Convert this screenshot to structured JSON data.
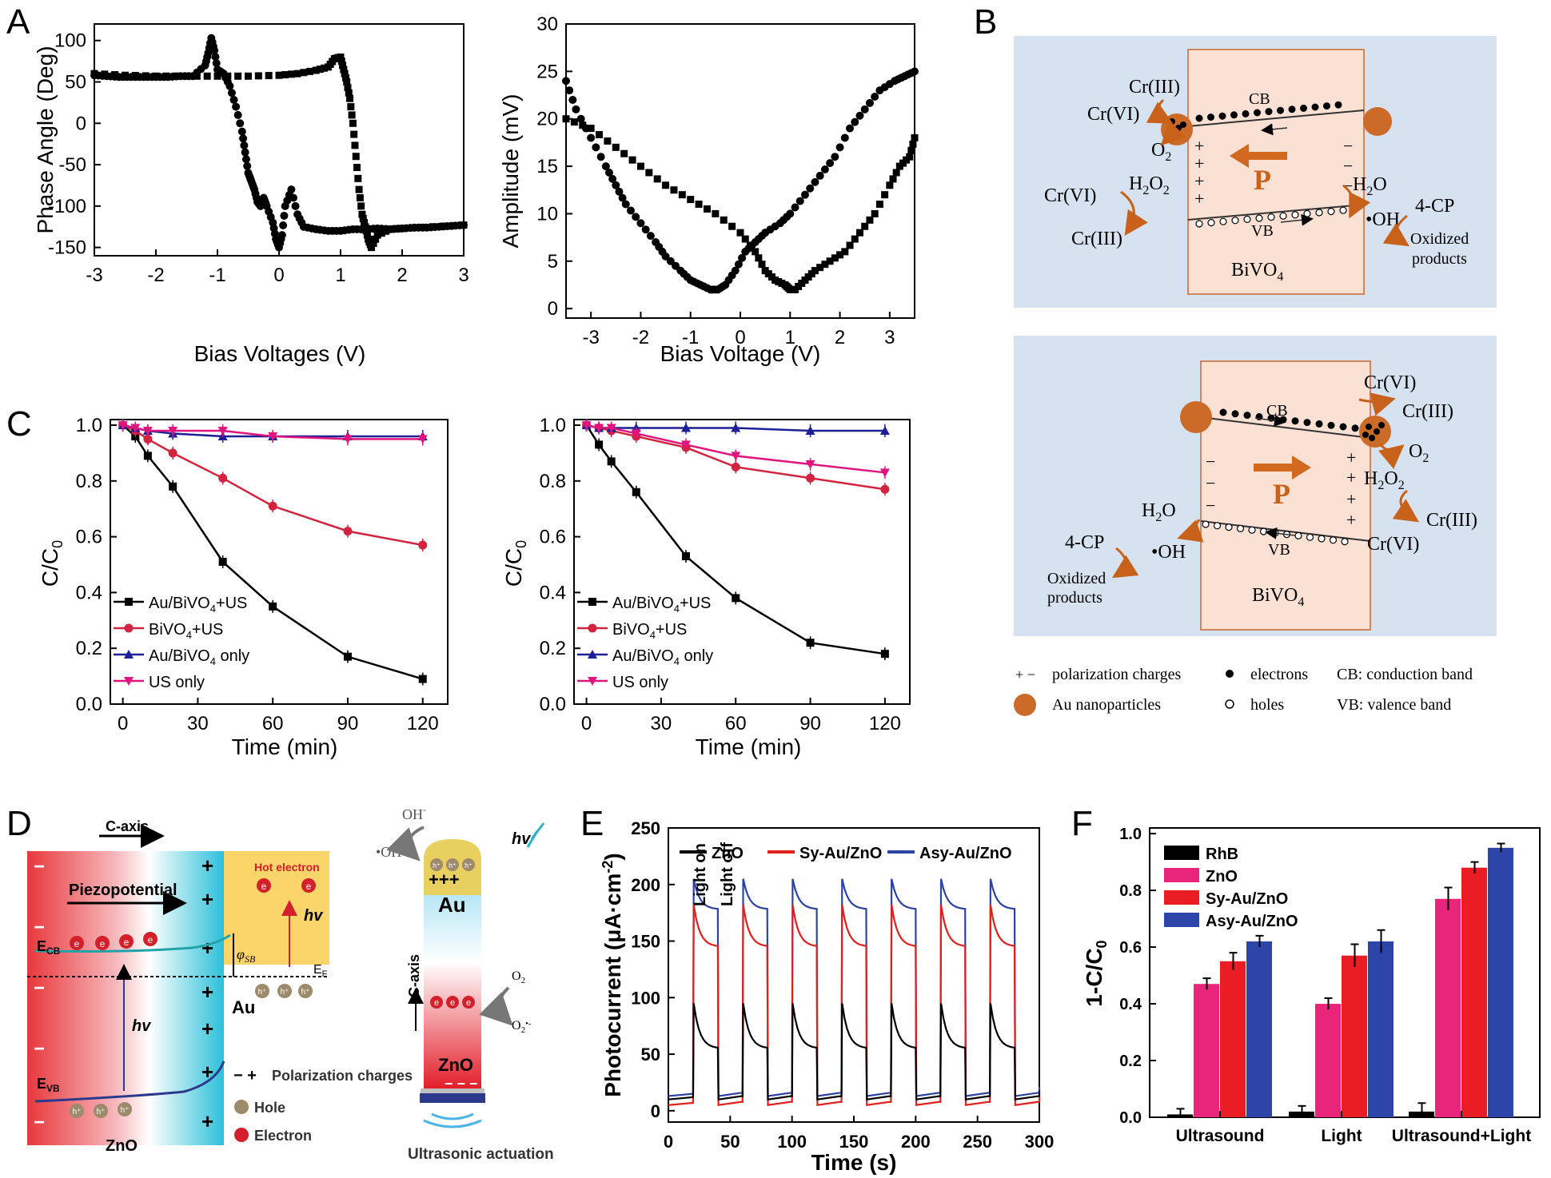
{
  "panels": {
    "A": {
      "label": "A",
      "phase": {
        "ylabel": "Phase Angle (Deg)",
        "xlabel": "Bias Voltages (V)",
        "xticks": [
          "-3",
          "-2",
          "-1",
          "0",
          "1",
          "2",
          "3"
        ],
        "yticks": [
          "100",
          "50",
          "0",
          "-50",
          "-100",
          "-150"
        ]
      },
      "amp": {
        "ylabel": "Amplitude (mV)",
        "xlabel": "Bias Voltage (V)",
        "xticks": [
          "-3",
          "-2",
          "-1",
          "0",
          "1",
          "2",
          "3"
        ],
        "yticks": [
          "30",
          "25",
          "20",
          "15",
          "10",
          "5",
          "0"
        ]
      }
    },
    "B": {
      "label": "B",
      "top": {
        "cr3_a": "Cr(III)",
        "cr6_a": "Cr(VI)",
        "cb": "CB",
        "o2": "O",
        "o2_sub": "2",
        "p": "P",
        "h2o2": "H",
        "h2o2_sub1": "2",
        "h2o2_o": "O",
        "h2o2_sub2": "2",
        "cr6_b": "Cr(VI)",
        "cr3_b": "Cr(III)",
        "h2o": "H",
        "h2o_sub": "2",
        "h2o_o": "O",
        "oh": "•OH",
        "cp": "4-CP",
        "oxid1": "Oxidized",
        "oxid2": "products",
        "vb": "VB",
        "bivo": "BiVO",
        "bivo_sub": "4"
      },
      "bottom": {
        "cr6_a": "Cr(VI)",
        "cr3_a": "Cr(III)",
        "cb": "CB",
        "o2": "O",
        "o2_sub": "2",
        "p": "P",
        "h2o2": "H",
        "h2o2_sub1": "2",
        "h2o2_o": "O",
        "h2o2_sub2": "2",
        "cr3_b": "Cr(III)",
        "cr6_b": "Cr(VI)",
        "h2o": "H",
        "h2o_sub": "2",
        "h2o_o": "O",
        "oh": "•OH",
        "cp": "4-CP",
        "oxid1": "Oxidized",
        "oxid2": "products",
        "vb": "VB",
        "bivo": "BiVO",
        "bivo_sub": "4"
      },
      "legend": {
        "pol": "polarization charges",
        "pol_sym": "+ −",
        "electrons": "electrons",
        "cb": "CB: conduction band",
        "au": "Au nanoparticles",
        "holes": "holes",
        "vb": "VB: valence band"
      }
    },
    "C": {
      "label": "C",
      "ylabel": "C/C",
      "ylabel_sub": "0",
      "xlabel": "Time (min)",
      "xticks": [
        "0",
        "30",
        "60",
        "90",
        "120"
      ],
      "yticks": [
        "1.0",
        "0.8",
        "0.6",
        "0.4",
        "0.2",
        "0.0"
      ],
      "legend": [
        {
          "pre": "Au/BiVO",
          "sub": "4",
          "post": "+US"
        },
        {
          "pre": "BiVO",
          "sub": "4",
          "post": "+US"
        },
        {
          "pre": "Au/BiVO",
          "sub": "4",
          "post": " only"
        },
        {
          "pre": "US only",
          "sub": "",
          "post": ""
        }
      ]
    },
    "D": {
      "label": "D",
      "caxis": "C-axis",
      "piezo": "Piezopotential",
      "hot": "Hot electron",
      "hv": "hv",
      "ecb": "E",
      "ecb_sub": "CB",
      "evb": "E",
      "evb_sub": "VB",
      "ef": "E",
      "ef_sub": "F",
      "phi": "φ",
      "phi_sub": "SB",
      "au": "Au",
      "zno": "ZnO",
      "pol": "Polarization charges",
      "pol_sym": "− +",
      "hole": "Hole",
      "electron": "Electron",
      "oh": "OH",
      "oh_sup": "-",
      "ohrad": "•OH",
      "au_rod": "Au",
      "caxis_v": "C-axis",
      "o2": "O",
      "o2_sub": "2",
      "o2r": "O",
      "o2r_sub": "2",
      "o2r_sup": "•-",
      "zno_rod": "ZnO",
      "ultra": "Ultrasonic actuation",
      "hplus": "h⁺",
      "eminus": "e"
    },
    "E": {
      "label": "E",
      "ylabel": "Photocurrent (μA·cm",
      "ylabel_sup": "-2",
      "ylabel_end": ")",
      "xlabel": "Time (s)",
      "xticks": [
        "0",
        "50",
        "100",
        "150",
        "200",
        "250",
        "300"
      ],
      "yticks": [
        "250",
        "200",
        "150",
        "100",
        "50",
        "0"
      ],
      "legend": [
        "ZnO",
        "Sy-Au/ZnO",
        "Asy-Au/ZnO"
      ],
      "light_on": "Light on",
      "light_off": "Light off"
    },
    "F": {
      "label": "F",
      "ylabel": "1-C/C",
      "ylabel_sub": "0",
      "yticks": [
        "1.0",
        "0.8",
        "0.6",
        "0.4",
        "0.2",
        "0.0"
      ],
      "legend": [
        "RhB",
        "ZnO",
        "Sy-Au/ZnO",
        "Asy-Au/ZnO"
      ]
    }
  },
  "chart_data": [
    {
      "type": "scatter",
      "title": "",
      "xlabel": "Bias Voltages (V)",
      "ylabel": "Phase Angle (Deg)",
      "xlim": [
        -3,
        3
      ],
      "ylim": [
        -160,
        120
      ],
      "series": [
        {
          "x": [
            -3.0,
            -2.8,
            -2.6,
            -2.4,
            -2.2,
            -2.0,
            -1.8,
            -1.6,
            -1.4,
            -1.2,
            -1.15,
            -1.1,
            -1.05,
            -1.0,
            -0.9,
            -0.8,
            -0.7,
            -0.6,
            -0.55,
            -0.5,
            -0.45,
            -0.4,
            -0.35,
            -0.3,
            -0.25,
            -0.2,
            -0.1,
            -0.05,
            0.0,
            0.05,
            0.1,
            0.2,
            0.3,
            0.4,
            0.6,
            0.8,
            1.0,
            1.2,
            1.4,
            1.6,
            1.8,
            2.0,
            2.2,
            2.4,
            2.6,
            2.8,
            3.0
          ],
          "y": [
            58,
            57,
            56,
            56,
            56,
            56,
            56,
            57,
            57,
            70,
            85,
            103,
            88,
            65,
            60,
            45,
            20,
            -10,
            -35,
            -60,
            -70,
            -80,
            -95,
            -100,
            -90,
            -100,
            -120,
            -140,
            -150,
            -135,
            -100,
            -80,
            -110,
            -125,
            -128,
            -130,
            -130,
            -128,
            -128,
            -127,
            -128,
            -127,
            -126,
            -126,
            -125,
            -124,
            -123
          ]
        },
        {
          "x": [
            -3.0,
            -2.5,
            -2.0,
            -1.5,
            -1.0,
            -0.5,
            0.0,
            0.3,
            0.6,
            0.8,
            0.9,
            1.0,
            1.05,
            1.1,
            1.15,
            1.2,
            1.25,
            1.3,
            1.35,
            1.4,
            1.45,
            1.5,
            1.6,
            1.8,
            2.0,
            2.5,
            3.0
          ],
          "y": [
            60,
            58,
            57,
            57,
            57,
            57,
            58,
            60,
            64,
            68,
            78,
            80,
            65,
            50,
            30,
            0,
            -40,
            -80,
            -110,
            -125,
            -140,
            -150,
            -135,
            -128,
            -127,
            -125,
            -123
          ]
        }
      ]
    },
    {
      "type": "scatter",
      "title": "",
      "xlabel": "Bias Voltage (V)",
      "ylabel": "Amplitude (mV)",
      "xlim": [
        -3.5,
        3.5
      ],
      "ylim": [
        -1,
        30
      ],
      "series": [
        {
          "x": [
            -3.5,
            -3.3,
            -3.0,
            -2.7,
            -2.5,
            -2.3,
            -2.0,
            -1.7,
            -1.5,
            -1.2,
            -1.0,
            -0.8,
            -0.6,
            -0.45,
            -0.3,
            -0.1,
            0.1,
            0.3,
            0.5,
            0.8,
            1.0,
            1.3,
            1.6,
            1.9,
            2.2,
            2.5,
            2.8,
            3.1,
            3.3,
            3.5
          ],
          "y": [
            24,
            21,
            18,
            15,
            13,
            11,
            9,
            7,
            5.5,
            4,
            3,
            2.5,
            2,
            2,
            2.5,
            4,
            6,
            7,
            8,
            9,
            10,
            12,
            14,
            16,
            19,
            21,
            23,
            24,
            24.5,
            25
          ]
        },
        {
          "x": [
            -3.5,
            -3.0,
            -2.5,
            -2.0,
            -1.5,
            -1.0,
            -0.5,
            0.0,
            0.3,
            0.5,
            0.7,
            0.9,
            1.0,
            1.1,
            1.3,
            1.5,
            1.8,
            2.1,
            2.4,
            2.7,
            3.0,
            3.2,
            3.4,
            3.5
          ],
          "y": [
            20,
            19,
            17,
            15,
            13,
            11.5,
            10,
            8,
            6,
            4,
            3,
            2.5,
            2,
            2,
            3,
            4,
            5,
            6,
            8,
            10,
            13,
            15,
            16,
            18
          ]
        }
      ]
    },
    {
      "type": "line",
      "title": "",
      "xlabel": "Time (min)",
      "ylabel": "C/C0",
      "ylim": [
        0,
        1.0
      ],
      "x": [
        0,
        5,
        10,
        20,
        40,
        60,
        90,
        120
      ],
      "series": [
        {
          "name": "Au/BiVO4+US",
          "values": [
            1.0,
            0.96,
            0.89,
            0.78,
            0.51,
            0.35,
            0.17,
            0.09
          ]
        },
        {
          "name": "BiVO4+US",
          "values": [
            1.0,
            0.98,
            0.95,
            0.9,
            0.81,
            0.71,
            0.62,
            0.57
          ]
        },
        {
          "name": "Au/BiVO4 only",
          "values": [
            1.0,
            0.99,
            0.98,
            0.97,
            0.96,
            0.96,
            0.96,
            0.96
          ]
        },
        {
          "name": "US only",
          "values": [
            1.0,
            0.99,
            0.98,
            0.98,
            0.98,
            0.96,
            0.95,
            0.95
          ]
        }
      ]
    },
    {
      "type": "line",
      "title": "",
      "xlabel": "Time (min)",
      "ylabel": "C/C0",
      "ylim": [
        0,
        1.0
      ],
      "x": [
        0,
        5,
        10,
        20,
        40,
        60,
        90,
        120
      ],
      "series": [
        {
          "name": "Au/BiVO4+US",
          "values": [
            1.0,
            0.93,
            0.87,
            0.76,
            0.53,
            0.38,
            0.22,
            0.18
          ]
        },
        {
          "name": "BiVO4+US",
          "values": [
            1.0,
            0.99,
            0.98,
            0.96,
            0.92,
            0.85,
            0.81,
            0.77
          ]
        },
        {
          "name": "Au/BiVO4 only",
          "values": [
            1.0,
            0.99,
            0.99,
            0.99,
            0.99,
            0.99,
            0.98,
            0.98
          ]
        },
        {
          "name": "US only",
          "values": [
            1.0,
            0.99,
            0.99,
            0.97,
            0.93,
            0.89,
            0.86,
            0.83
          ]
        }
      ]
    },
    {
      "type": "line",
      "title": "",
      "xlabel": "Time (s)",
      "ylabel": "Photocurrent (μA·cm-2)",
      "xlim": [
        0,
        300
      ],
      "ylim": [
        -10,
        250
      ],
      "on_times": [
        20,
        60,
        100,
        140,
        180,
        220,
        260
      ],
      "series": [
        {
          "name": "ZnO",
          "baseline": 10,
          "on_value": 55,
          "spike": 95
        },
        {
          "name": "Sy-Au/ZnO",
          "baseline": 5,
          "on_value": 145,
          "spike": 182
        },
        {
          "name": "Asy-Au/ZnO",
          "baseline": 13,
          "on_value": 178,
          "spike": 205
        }
      ]
    },
    {
      "type": "bar",
      "title": "",
      "xlabel": "",
      "ylabel": "1-C/C0",
      "ylim": [
        0,
        1.0
      ],
      "categories": [
        "Ultrasound",
        "Light",
        "Ultrasound+Light"
      ],
      "series": [
        {
          "name": "RhB",
          "values": [
            0.01,
            0.02,
            0.02
          ],
          "err": [
            0.02,
            0.02,
            0.03
          ]
        },
        {
          "name": "ZnO",
          "values": [
            0.47,
            0.4,
            0.77
          ],
          "err": [
            0.02,
            0.02,
            0.04
          ]
        },
        {
          "name": "Sy-Au/ZnO",
          "values": [
            0.55,
            0.57,
            0.88
          ],
          "err": [
            0.03,
            0.04,
            0.02
          ]
        },
        {
          "name": "Asy-Au/ZnO",
          "values": [
            0.62,
            0.62,
            0.95
          ],
          "err": [
            0.02,
            0.04,
            0.015
          ]
        }
      ],
      "colors": [
        "#000000",
        "#e8257a",
        "#ea1c24",
        "#2d45a8"
      ]
    }
  ]
}
